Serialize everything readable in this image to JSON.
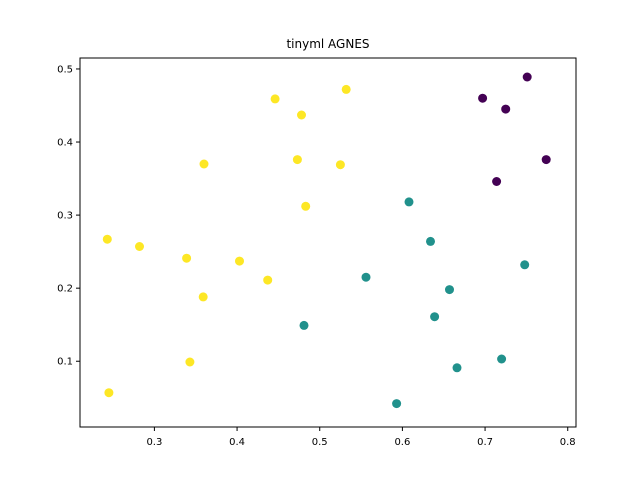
{
  "chart_data": {
    "type": "scatter",
    "title": "tinyml AGNES",
    "xlabel": "",
    "ylabel": "",
    "xlim": [
      0.21,
      0.81
    ],
    "ylim": [
      0.01,
      0.515
    ],
    "x_ticks": [
      "0.3",
      "0.4",
      "0.5",
      "0.6",
      "0.7",
      "0.8"
    ],
    "y_ticks": [
      "0.1",
      "0.2",
      "0.3",
      "0.4",
      "0.5"
    ],
    "grid": false,
    "legend": "none",
    "colors": {
      "cluster_0": "#440154",
      "cluster_1": "#21918c",
      "cluster_2": "#fde725"
    },
    "series": [
      {
        "cluster": 0,
        "points": [
          {
            "x": 0.697,
            "y": 0.46
          },
          {
            "x": 0.725,
            "y": 0.445
          },
          {
            "x": 0.751,
            "y": 0.489
          },
          {
            "x": 0.774,
            "y": 0.376
          },
          {
            "x": 0.714,
            "y": 0.346
          }
        ]
      },
      {
        "cluster": 1,
        "points": [
          {
            "x": 0.608,
            "y": 0.318
          },
          {
            "x": 0.634,
            "y": 0.264
          },
          {
            "x": 0.556,
            "y": 0.215
          },
          {
            "x": 0.657,
            "y": 0.198
          },
          {
            "x": 0.748,
            "y": 0.232
          },
          {
            "x": 0.639,
            "y": 0.161
          },
          {
            "x": 0.481,
            "y": 0.149
          },
          {
            "x": 0.72,
            "y": 0.103
          },
          {
            "x": 0.666,
            "y": 0.091
          },
          {
            "x": 0.593,
            "y": 0.042
          }
        ]
      },
      {
        "cluster": 2,
        "points": [
          {
            "x": 0.446,
            "y": 0.459
          },
          {
            "x": 0.532,
            "y": 0.472
          },
          {
            "x": 0.478,
            "y": 0.437
          },
          {
            "x": 0.36,
            "y": 0.37
          },
          {
            "x": 0.473,
            "y": 0.376
          },
          {
            "x": 0.525,
            "y": 0.369
          },
          {
            "x": 0.483,
            "y": 0.312
          },
          {
            "x": 0.243,
            "y": 0.267
          },
          {
            "x": 0.282,
            "y": 0.257
          },
          {
            "x": 0.339,
            "y": 0.241
          },
          {
            "x": 0.403,
            "y": 0.237
          },
          {
            "x": 0.437,
            "y": 0.211
          },
          {
            "x": 0.359,
            "y": 0.188
          },
          {
            "x": 0.343,
            "y": 0.099
          },
          {
            "x": 0.245,
            "y": 0.057
          }
        ]
      }
    ]
  }
}
